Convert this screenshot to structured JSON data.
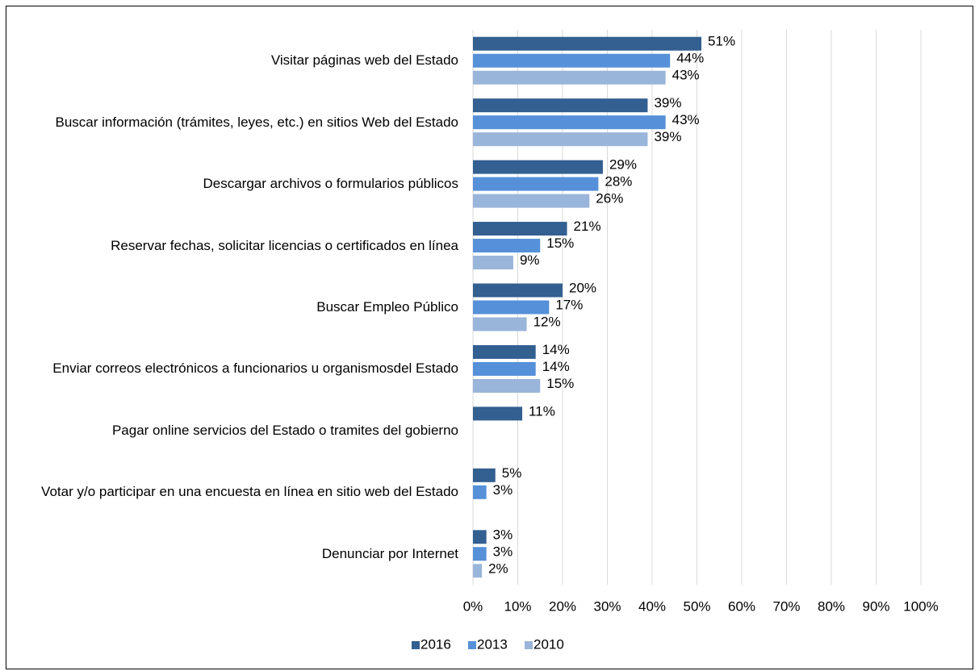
{
  "chart_data": {
    "type": "bar",
    "orientation": "horizontal",
    "categories": [
      "Visitar páginas web del Estado",
      "Buscar información (trámites, leyes, etc.) en sitios Web del Estado",
      "Descargar archivos o formularios públicos",
      "Reservar fechas, solicitar licencias o certificados en línea",
      "Buscar Empleo Público",
      "Enviar correos electrónicos a funcionarios u organismosdel Estado",
      "Pagar online servicios del Estado o tramites del gobierno",
      "Votar y/o participar en una encuesta en línea en sitio web del Estado",
      "Denunciar por Internet"
    ],
    "series": [
      {
        "name": "2016",
        "color": "#335f91",
        "values": [
          51,
          39,
          29,
          21,
          20,
          14,
          11,
          5,
          3
        ],
        "value_labels": [
          "51%",
          "39%",
          "29%",
          "21%",
          "20%",
          "14%",
          "11%",
          "5%",
          "3%"
        ]
      },
      {
        "name": "2013",
        "color": "#5590d9",
        "values": [
          44,
          43,
          28,
          15,
          17,
          14,
          null,
          3,
          3
        ],
        "value_labels": [
          "44%",
          "43%",
          "28%",
          "15%",
          "17%",
          "14%",
          null,
          "3%",
          "3%"
        ]
      },
      {
        "name": "2010",
        "color": "#9ab5da",
        "values": [
          43,
          39,
          26,
          9,
          12,
          15,
          null,
          null,
          2
        ],
        "value_labels": [
          "43%",
          "39%",
          "26%",
          "9%",
          "12%",
          "15%",
          null,
          null,
          "2%"
        ]
      }
    ],
    "xlim": [
      0,
      100
    ],
    "xticks": [
      {
        "value": 0,
        "label": "0%"
      },
      {
        "value": 10,
        "label": "10%"
      },
      {
        "value": 20,
        "label": "20%"
      },
      {
        "value": 30,
        "label": "30%"
      },
      {
        "value": 40,
        "label": "40%"
      },
      {
        "value": 50,
        "label": "50%"
      },
      {
        "value": 60,
        "label": "60%"
      },
      {
        "value": 70,
        "label": "70%"
      },
      {
        "value": 80,
        "label": "80%"
      },
      {
        "value": 90,
        "label": "90%"
      },
      {
        "value": 100,
        "label": "100%"
      }
    ],
    "grid": true,
    "legend": "bottom"
  }
}
